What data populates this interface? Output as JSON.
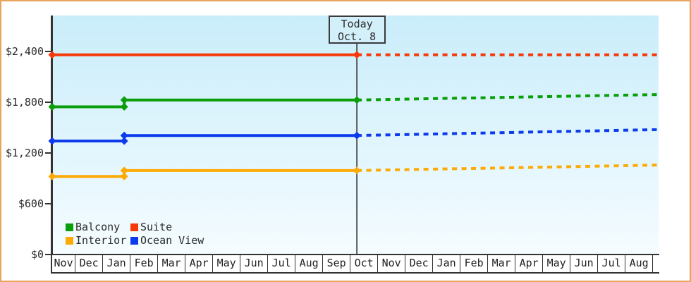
{
  "chart_data": {
    "type": "line",
    "description": "Cruise cabin price history with dashed forecast after today marker",
    "colors": {
      "frame": "#e8a45c",
      "axis": "#333333",
      "plot_gradient_top": "#c9edfa",
      "plot_gradient_bottom": "#f5fcff",
      "today_box_fill": "#d2effa",
      "text": "#2b2b2b"
    },
    "y_axis": {
      "ticks": [
        {
          "value": 0,
          "label": "$0"
        },
        {
          "value": 600,
          "label": "$600"
        },
        {
          "value": 1200,
          "label": "$1,200"
        },
        {
          "value": 1800,
          "label": "$1,800"
        },
        {
          "value": 2400,
          "label": "$2,400"
        }
      ],
      "ylim": [
        0,
        2825
      ],
      "grid": false
    },
    "x_axis": {
      "months": [
        "Nov",
        "Dec",
        "Jan",
        "Feb",
        "Mar",
        "Apr",
        "May",
        "Jun",
        "Jul",
        "Aug",
        "Sep",
        "Oct",
        "Nov",
        "Dec",
        "Jan",
        "Feb",
        "Mar",
        "Apr",
        "May",
        "Jun",
        "Jul",
        "Aug"
      ],
      "start_month_fraction": 0.15,
      "end_t": 22.2
    },
    "today": {
      "line1": "Today",
      "line2": "Oct. 8",
      "t": 11.23
    },
    "series": [
      {
        "name": "Balcony",
        "color": "#0a9e0a",
        "history": [
          [
            0.15,
            1745
          ],
          [
            2.77,
            1745
          ],
          [
            2.77,
            1825
          ],
          [
            11.23,
            1825
          ]
        ],
        "forecast": [
          [
            11.23,
            1825
          ],
          [
            22.2,
            1890
          ]
        ]
      },
      {
        "name": "Suite",
        "color": "#f63908",
        "history": [
          [
            0.15,
            2360
          ],
          [
            11.23,
            2360
          ]
        ],
        "forecast": [
          [
            11.23,
            2360
          ],
          [
            22.2,
            2360
          ]
        ]
      },
      {
        "name": "Interior",
        "color": "#fcaa05",
        "history": [
          [
            0.15,
            920
          ],
          [
            2.77,
            920
          ],
          [
            2.77,
            990
          ],
          [
            11.23,
            990
          ]
        ],
        "forecast": [
          [
            11.23,
            990
          ],
          [
            22.2,
            1055
          ]
        ]
      },
      {
        "name": "Ocean View",
        "color": "#0c3bee",
        "history": [
          [
            0.15,
            1340
          ],
          [
            2.77,
            1340
          ],
          [
            2.77,
            1405
          ],
          [
            11.23,
            1405
          ]
        ],
        "forecast": [
          [
            11.23,
            1405
          ],
          [
            22.2,
            1475
          ]
        ]
      }
    ],
    "legend": {
      "position": "bottom-left",
      "items": [
        "Balcony",
        "Suite",
        "Interior",
        "Ocean View"
      ]
    }
  }
}
